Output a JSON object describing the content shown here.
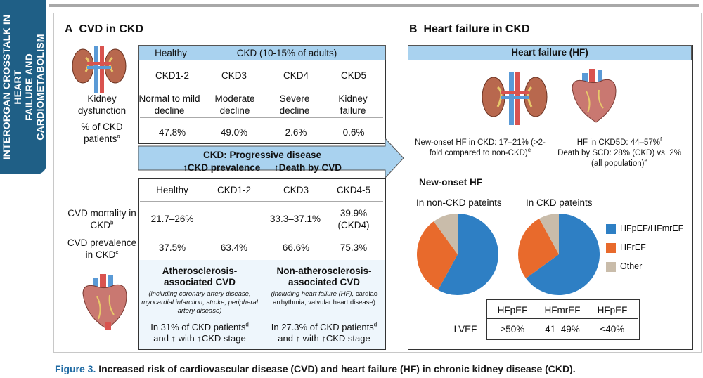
{
  "sidebar": {
    "line1": "INTERORGAN CROSSTALK IN HEART",
    "line2": "FAILURE AND CARDIOMETABOLISM"
  },
  "panelA": {
    "letter": "A",
    "title": "CVD in CKD",
    "header": {
      "healthy": "Healthy",
      "ckd": "CKD (10-15% of adults)"
    },
    "stages": [
      "CKD1-2",
      "CKD3",
      "CKD4",
      "CKD5"
    ],
    "dysfunction_label": "Kidney dysfunction",
    "dysfunction": [
      "Normal to mild decline",
      "Moderate decline",
      "Severe decline",
      "Kidney failure"
    ],
    "pct_label": "% of CKD patients",
    "pct_sup": "a",
    "pct": [
      "47.8%",
      "49.0%",
      "2.6%",
      "0.6%"
    ],
    "progressive": {
      "title": "CKD: Progressive disease",
      "left": "CKD prevalence",
      "right": "Death by CVD",
      "arrow": "↑"
    },
    "cols2": [
      "Healthy",
      "CKD1-2",
      "CKD3",
      "CKD4-5"
    ],
    "mortality_label": "CVD mortality in CKD",
    "mortality_sup": "b",
    "mortality": [
      "21.7–26%",
      "",
      "33.3–37.1%",
      "39.9% (CKD4)"
    ],
    "prevalence_label": "CVD prevalence in CKD",
    "prevalence_sup": "c",
    "prevalence": [
      "37.5%",
      "63.4%",
      "66.6%",
      "75.3%"
    ],
    "athero": {
      "title": "Atherosclerosis-associated CVD",
      "desc": "(including coronary artery disease, myocardial infarction, stroke, peripheral artery disease)",
      "stat": "In 31% of CKD patients",
      "sup": "d",
      "tail": "and ↑ with ↑CKD stage"
    },
    "nonathero": {
      "title": "Non-atherosclerosis-associated CVD",
      "desc_it": "(including heart failure (HF),",
      "desc": "cardiac arrhythmia, valvular heart disease)",
      "stat": "In 27.3% of CKD patients",
      "sup": "d",
      "tail": "and ↑ with ↑CKD stage"
    }
  },
  "panelB": {
    "letter": "B",
    "title": "Heart failure in CKD",
    "hf_header": "Heart failure (HF)",
    "left_text": "New-onset HF in CKD: 17–21% (>2-fold compared to non-CKD)",
    "left_sup": "e",
    "right_text1": "HF in CKD5D: 44–57%",
    "right_sup1": "f",
    "right_text2": "Death by SCD: 28% (CKD) vs. 2% (all population)",
    "right_sup2": "e",
    "new_onset": "New-onset HF",
    "pie_titles": [
      "In non-CKD pateints",
      "In CKD pateints"
    ],
    "legend": [
      {
        "label": "HFpEF/HFmrEF",
        "color": "#2e7fc4"
      },
      {
        "label": "HFrEF",
        "color": "#e86a2c"
      },
      {
        "label": "Other",
        "color": "#c9bcaa"
      }
    ],
    "lvef": {
      "row_label": "LVEF",
      "headers": [
        "HFpEF",
        "HFmrEF",
        "HFpEF"
      ],
      "values": [
        "≥50%",
        "41–49%",
        "≤40%"
      ]
    }
  },
  "chart_data": [
    {
      "type": "pie",
      "title": "In non-CKD pateints",
      "labels": [
        "HFpEF/HFmrEF",
        "HFrEF",
        "Other"
      ],
      "values": [
        58,
        32,
        10
      ],
      "colors": [
        "#2e7fc4",
        "#e86a2c",
        "#c9bcaa"
      ]
    },
    {
      "type": "pie",
      "title": "In CKD pateints",
      "labels": [
        "HFpEF/HFmrEF",
        "HFrEF",
        "Other"
      ],
      "values": [
        65,
        27,
        8
      ],
      "colors": [
        "#2e7fc4",
        "#e86a2c",
        "#c9bcaa"
      ]
    }
  ],
  "caption": {
    "fig": "Figure 3.",
    "text": " Increased risk of cardiovascular disease (CVD) and heart failure (HF) in chronic kidney disease (CKD)."
  }
}
